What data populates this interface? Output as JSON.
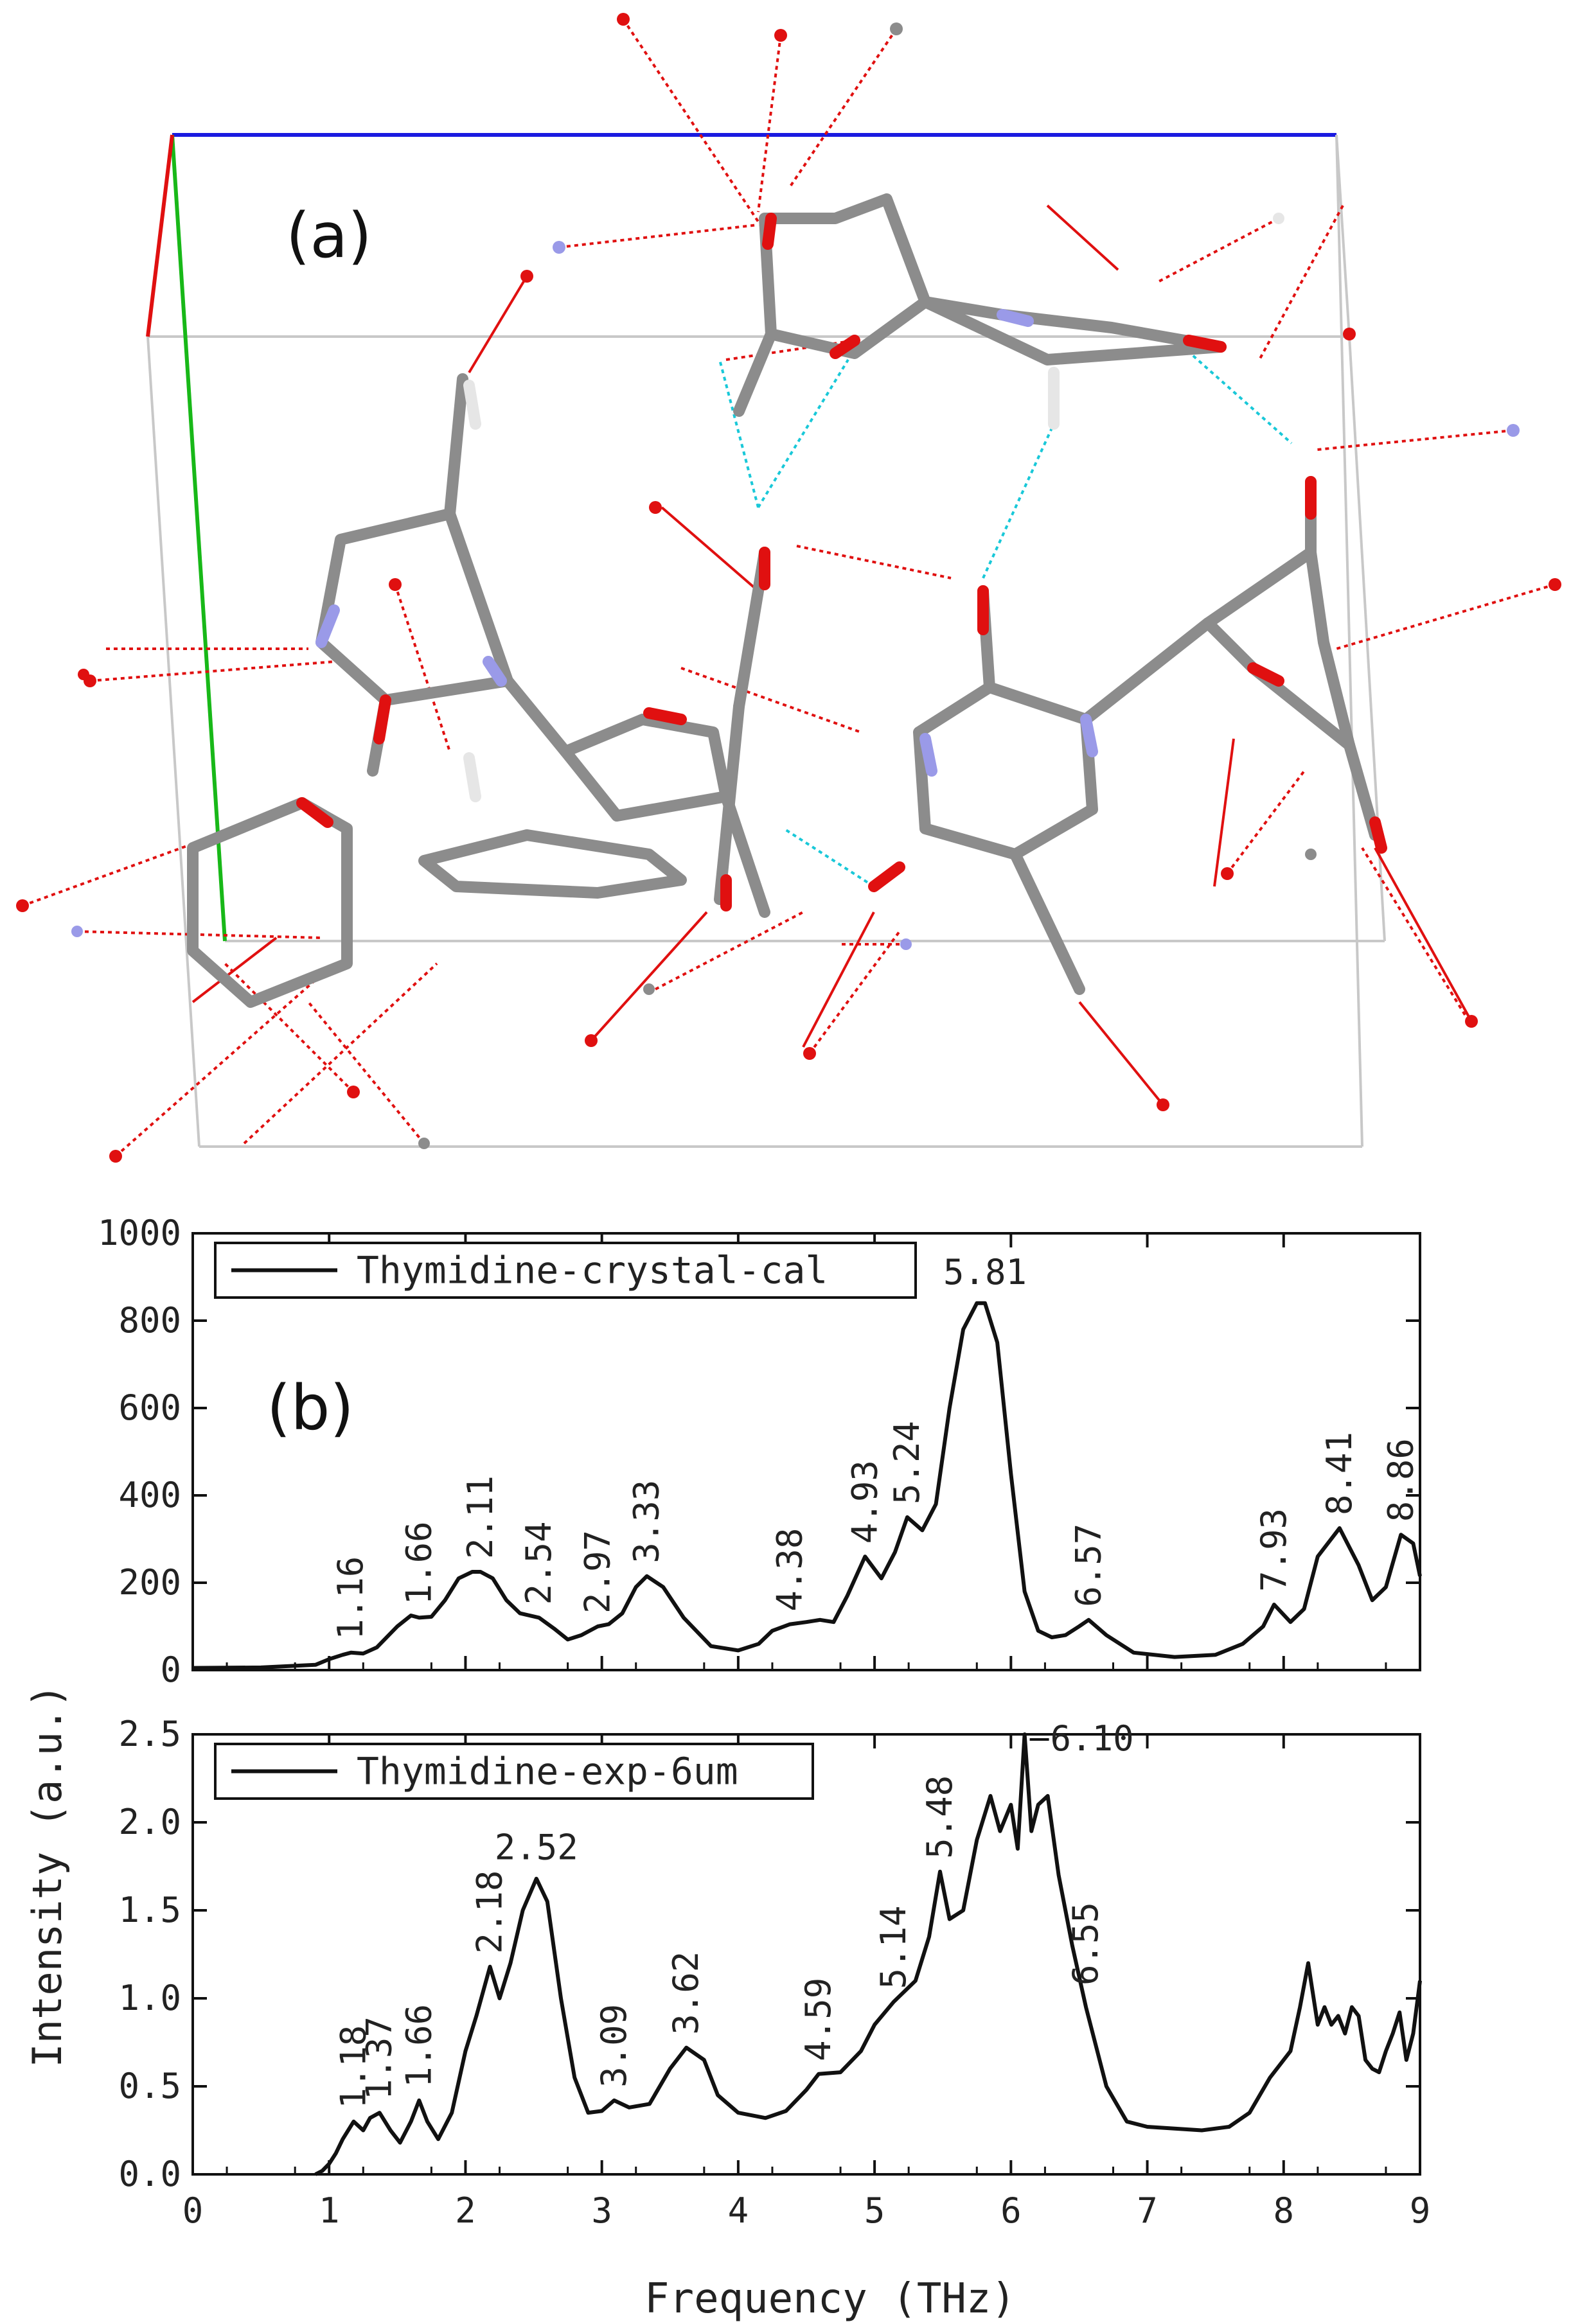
{
  "panels": {
    "a_label": "(a)",
    "b_label": "(b)"
  },
  "colors": {
    "atom_c": "#8c8c8c",
    "atom_n": "#9a9ae8",
    "atom_o": "#e01010",
    "atom_h": "#e6e6e6",
    "hbond": "#19c8d8",
    "contact": "#e01010",
    "cell_a": "#e01010",
    "cell_b": "#18b818",
    "cell_c": "#1a1ae0",
    "cell_edge": "#c8c8c8",
    "spectrum": "#111111"
  },
  "chart_data": [
    {
      "type": "line",
      "xlabel": "Frequency (THz)",
      "ylabel": "Intensity (a.u.)",
      "xlim": [
        0,
        9
      ],
      "ylim": [
        0,
        1000
      ],
      "xticks": [
        "0",
        "1",
        "2",
        "3",
        "4",
        "5",
        "6",
        "7",
        "8",
        "9"
      ],
      "yticks": [
        "0",
        "200",
        "400",
        "600",
        "800",
        "1000"
      ],
      "legend": "top-left",
      "series": [
        {
          "name": "Thymidine-crystal-cal",
          "x": [
            0,
            0.5,
            0.9,
            1.0,
            1.1,
            1.16,
            1.25,
            1.35,
            1.5,
            1.6,
            1.66,
            1.75,
            1.85,
            1.95,
            2.05,
            2.11,
            2.2,
            2.3,
            2.4,
            2.54,
            2.65,
            2.75,
            2.85,
            2.97,
            3.05,
            3.15,
            3.25,
            3.33,
            3.45,
            3.6,
            3.8,
            4.0,
            4.15,
            4.25,
            4.38,
            4.5,
            4.6,
            4.7,
            4.8,
            4.93,
            5.05,
            5.15,
            5.24,
            5.35,
            5.45,
            5.55,
            5.65,
            5.75,
            5.81,
            5.9,
            6.0,
            6.1,
            6.2,
            6.3,
            6.4,
            6.5,
            6.57,
            6.7,
            6.9,
            7.2,
            7.5,
            7.7,
            7.85,
            7.93,
            8.05,
            8.15,
            8.25,
            8.41,
            8.55,
            8.65,
            8.75,
            8.86,
            8.95,
            9.0
          ],
          "values": [
            5,
            6,
            12,
            25,
            35,
            40,
            38,
            52,
            100,
            125,
            120,
            122,
            160,
            210,
            225,
            225,
            210,
            160,
            130,
            120,
            95,
            70,
            80,
            100,
            105,
            130,
            190,
            215,
            190,
            120,
            55,
            45,
            60,
            90,
            105,
            110,
            115,
            110,
            170,
            260,
            210,
            270,
            350,
            320,
            380,
            600,
            780,
            840,
            840,
            750,
            450,
            180,
            90,
            75,
            80,
            100,
            115,
            80,
            40,
            30,
            35,
            60,
            100,
            150,
            110,
            140,
            260,
            325,
            240,
            160,
            190,
            310,
            290,
            215
          ],
          "annotations": [
            "1.16",
            "1.66",
            "2.11",
            "2.54",
            "2.97",
            "3.33",
            "4.38",
            "4.93",
            "5.24",
            "5.81",
            "6.57",
            "7.93",
            "8.41",
            "8.86"
          ],
          "annotation_x": [
            1.16,
            1.66,
            2.11,
            2.54,
            2.97,
            3.33,
            4.38,
            4.93,
            5.24,
            5.81,
            6.57,
            7.93,
            8.41,
            8.86
          ],
          "annotation_y": [
            40,
            120,
            225,
            120,
            100,
            215,
            105,
            260,
            350,
            840,
            115,
            150,
            325,
            310
          ]
        }
      ]
    },
    {
      "type": "line",
      "xlabel": "Frequency (THz)",
      "ylabel": "Intensity (a.u.)",
      "xlim": [
        0,
        9
      ],
      "ylim": [
        0,
        2.5
      ],
      "xticks": [
        "0",
        "1",
        "2",
        "3",
        "4",
        "5",
        "6",
        "7",
        "8",
        "9"
      ],
      "yticks": [
        "0.0",
        "0.5",
        "1.0",
        "1.5",
        "2.0",
        "2.5"
      ],
      "legend": "top-left",
      "series": [
        {
          "name": "Thymidine-exp-6um",
          "x": [
            0.9,
            0.95,
            1.0,
            1.05,
            1.1,
            1.18,
            1.25,
            1.3,
            1.37,
            1.45,
            1.52,
            1.6,
            1.66,
            1.72,
            1.8,
            1.9,
            2.0,
            2.08,
            2.18,
            2.25,
            2.33,
            2.42,
            2.52,
            2.6,
            2.7,
            2.8,
            2.9,
            3.0,
            3.09,
            3.2,
            3.35,
            3.5,
            3.62,
            3.75,
            3.85,
            4.0,
            4.2,
            4.35,
            4.5,
            4.59,
            4.75,
            4.9,
            5.0,
            5.14,
            5.3,
            5.4,
            5.48,
            5.55,
            5.65,
            5.75,
            5.85,
            5.92,
            6.0,
            6.05,
            6.1,
            6.15,
            6.2,
            6.27,
            6.35,
            6.45,
            6.55,
            6.7,
            6.85,
            7.0,
            7.2,
            7.4,
            7.6,
            7.75,
            7.9,
            8.05,
            8.12,
            8.18,
            8.25,
            8.3,
            8.35,
            8.4,
            8.45,
            8.5,
            8.55,
            8.6,
            8.65,
            8.7,
            8.75,
            8.8,
            8.85,
            8.9,
            8.95,
            9.0
          ],
          "values": [
            0.0,
            0.02,
            0.06,
            0.12,
            0.2,
            0.3,
            0.25,
            0.32,
            0.35,
            0.25,
            0.18,
            0.3,
            0.42,
            0.3,
            0.2,
            0.35,
            0.7,
            0.9,
            1.18,
            1.0,
            1.2,
            1.5,
            1.68,
            1.55,
            1.0,
            0.55,
            0.35,
            0.36,
            0.42,
            0.38,
            0.4,
            0.6,
            0.72,
            0.65,
            0.45,
            0.35,
            0.32,
            0.36,
            0.48,
            0.57,
            0.58,
            0.7,
            0.85,
            0.98,
            1.1,
            1.35,
            1.72,
            1.45,
            1.5,
            1.9,
            2.15,
            1.95,
            2.1,
            1.85,
            2.5,
            1.95,
            2.1,
            2.15,
            1.7,
            1.3,
            0.95,
            0.5,
            0.3,
            0.27,
            0.26,
            0.25,
            0.27,
            0.35,
            0.55,
            0.7,
            0.95,
            1.2,
            0.85,
            0.95,
            0.85,
            0.9,
            0.8,
            0.95,
            0.9,
            0.65,
            0.6,
            0.58,
            0.7,
            0.8,
            0.92,
            0.65,
            0.8,
            1.1
          ],
          "annotations": [
            "1.18",
            "1.37",
            "1.66",
            "2.18",
            "2.52",
            "3.09",
            "3.62",
            "4.59",
            "5.14",
            "5.48",
            "6.10",
            "6.55"
          ],
          "annotation_x": [
            1.18,
            1.37,
            1.66,
            2.18,
            2.52,
            3.09,
            3.62,
            4.59,
            5.14,
            5.48,
            6.1,
            6.55
          ],
          "annotation_y": [
            0.3,
            0.35,
            0.42,
            1.18,
            1.68,
            0.42,
            0.72,
            0.57,
            0.98,
            1.72,
            2.5,
            1.0
          ]
        }
      ]
    }
  ]
}
